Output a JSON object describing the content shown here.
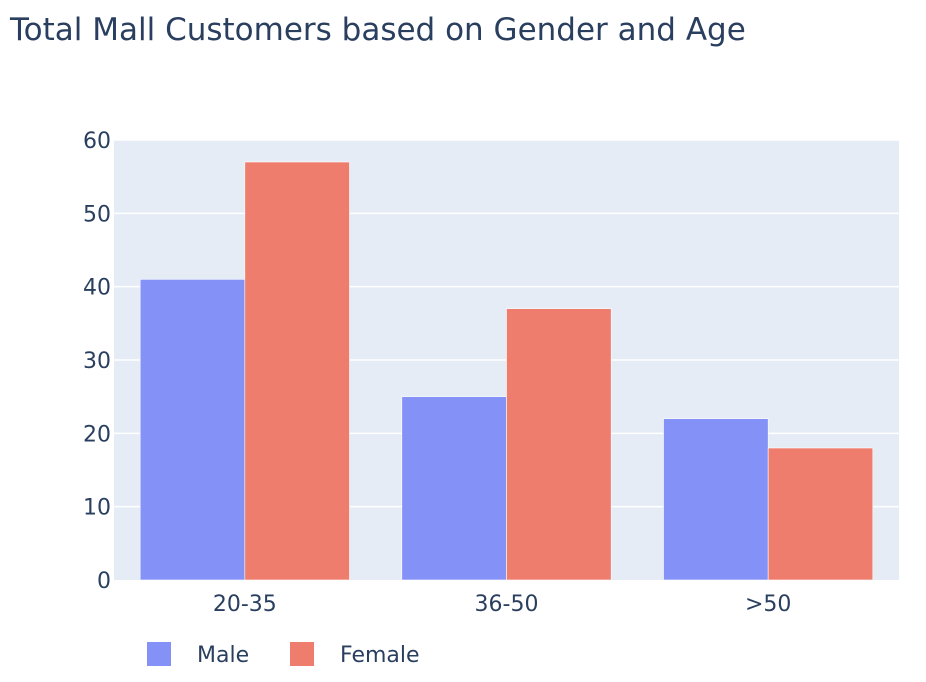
{
  "chart_data": {
    "type": "bar",
    "title": "Total Mall Customers based on Gender and Age",
    "xlabel": "",
    "ylabel": "",
    "categories": [
      "20-35",
      "36-50",
      ">50"
    ],
    "series": [
      {
        "name": "Male",
        "values": [
          41,
          25,
          22
        ],
        "color": "#8491f7"
      },
      {
        "name": "Female",
        "values": [
          57,
          37,
          18
        ],
        "color": "#ef7d6d"
      }
    ],
    "ylim": [
      0,
      60
    ],
    "yticks": [
      0,
      10,
      20,
      30,
      40,
      50,
      60
    ],
    "grid": true,
    "legend_position": "bottom-left",
    "colors": {
      "plot_background": "#e5ecf6",
      "gridline": "#ffffff",
      "text": "#2a3f5f"
    }
  }
}
